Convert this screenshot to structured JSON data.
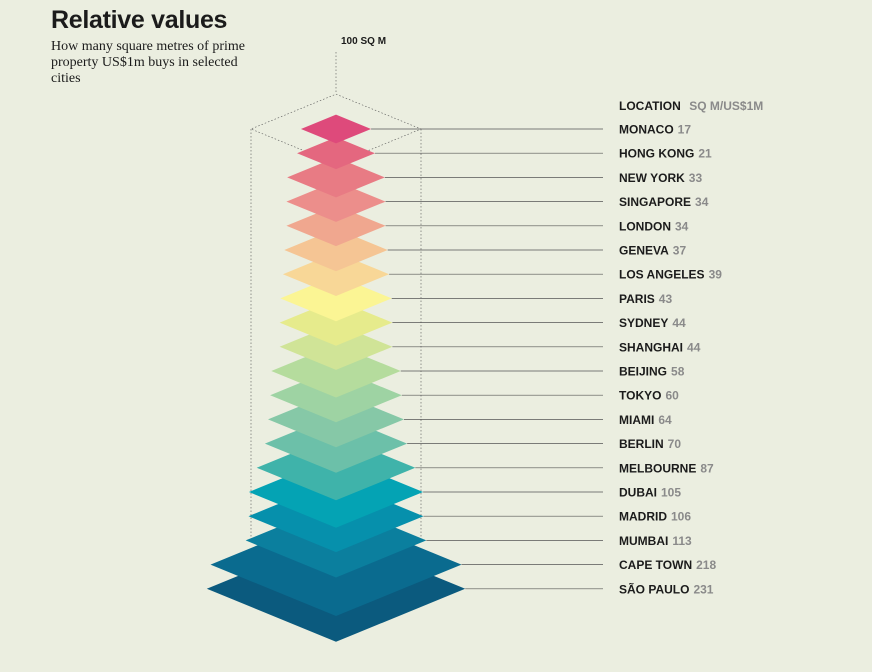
{
  "chart_data": {
    "type": "stacked-diamond-pyramid",
    "title": "Relative values",
    "subtitle": "How many square metres of prime property US$1m buys in selected cities",
    "reference_label": "100 SQ M",
    "reference_value": 100,
    "header": {
      "location": "LOCATION",
      "unit": "SQ M/US$1M"
    },
    "categories": [
      "MONACO",
      "HONG KONG",
      "NEW YORK",
      "SINGAPORE",
      "LONDON",
      "GENEVA",
      "LOS ANGELES",
      "PARIS",
      "SYDNEY",
      "SHANGHAI",
      "BEIJING",
      "TOKYO",
      "MIAMI",
      "BERLIN",
      "MELBOURNE",
      "DUBAI",
      "MADRID",
      "MUMBAI",
      "CAPE TOWN",
      "SÃO PAULO"
    ],
    "values": [
      17,
      21,
      33,
      34,
      34,
      37,
      39,
      43,
      44,
      44,
      58,
      60,
      64,
      70,
      87,
      105,
      106,
      113,
      218,
      231
    ],
    "colors": [
      "#de4a7b",
      "#e4677f",
      "#e87b84",
      "#ec8e8b",
      "#f0a78f",
      "#f5c594",
      "#f8d797",
      "#fbf594",
      "#e6eb8c",
      "#d0e497",
      "#b5dc9d",
      "#9ed3a3",
      "#86c8a7",
      "#6cc0a9",
      "#3fb3aa",
      "#04a3b4",
      "#0690ac",
      "#0b7f9e",
      "#0a6b8f",
      "#0b5a7e"
    ]
  }
}
